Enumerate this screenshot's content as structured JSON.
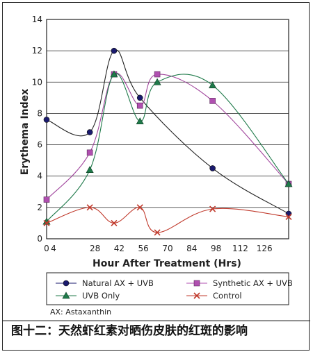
{
  "chart_data": {
    "type": "line",
    "title": "",
    "xlabel": "Hour After Treatment (Hrs)",
    "ylabel": "Erythema Index",
    "xlim": [
      0,
      140
    ],
    "ylim": [
      0,
      14
    ],
    "xticks": [
      0,
      4,
      28,
      42,
      56,
      70,
      84,
      98,
      112,
      126
    ],
    "xtick_labels": [
      "0",
      "4",
      "28",
      "42",
      "56",
      "70",
      "84",
      "98",
      "112",
      "126"
    ],
    "yticks": [
      0,
      2,
      4,
      6,
      8,
      10,
      12,
      14
    ],
    "ytick_labels": [
      "0",
      "2",
      "4",
      "6",
      "8",
      "10",
      "12",
      "14"
    ],
    "grid": "horizontal",
    "legend_position": "bottom",
    "series": [
      {
        "name": "Natural AX + UVB",
        "color": "#1a1a6e",
        "marker": "circle",
        "points": [
          [
            0,
            7.6
          ],
          [
            25,
            6.8
          ],
          [
            39,
            12.0
          ],
          [
            54,
            9.0
          ],
          [
            96,
            4.5
          ],
          [
            140,
            1.6
          ]
        ]
      },
      {
        "name": "Synthetic AX + UVB",
        "color": "#b04fb0",
        "marker": "square",
        "points": [
          [
            0,
            2.5
          ],
          [
            25,
            5.5
          ],
          [
            39,
            10.5
          ],
          [
            54,
            8.5
          ],
          [
            64,
            10.5
          ],
          [
            96,
            8.8
          ],
          [
            140,
            3.5
          ]
        ]
      },
      {
        "name": "UVB Only",
        "color": "#1f7a4a",
        "marker": "triangle",
        "points": [
          [
            0,
            1.1
          ],
          [
            25,
            4.4
          ],
          [
            39,
            10.5
          ],
          [
            54,
            7.5
          ],
          [
            64,
            10.0
          ],
          [
            96,
            9.8
          ],
          [
            140,
            3.5
          ]
        ]
      },
      {
        "name": "Control",
        "color": "#c0392b",
        "marker": "x",
        "points": [
          [
            0,
            1.0
          ],
          [
            25,
            2.0
          ],
          [
            39,
            1.0
          ],
          [
            54,
            2.0
          ],
          [
            64,
            0.4
          ],
          [
            96,
            1.9
          ],
          [
            140,
            1.4
          ]
        ]
      }
    ],
    "annotation": "AX: Astaxanthin"
  },
  "caption": "图十二：天然虾红素对晒伤皮肤的红斑的影响"
}
